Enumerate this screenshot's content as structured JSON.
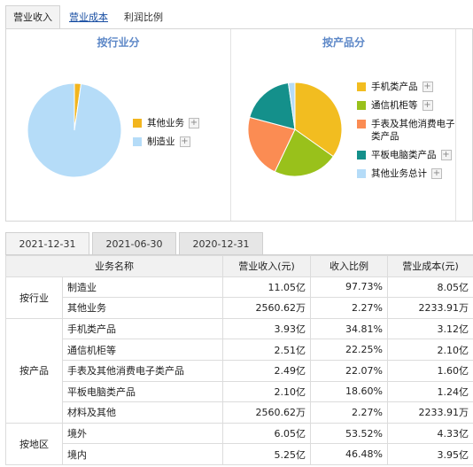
{
  "top_tabs": [
    {
      "label": "营业收入",
      "active": true
    },
    {
      "label": "营业成本",
      "active": false
    },
    {
      "label": "利润比例",
      "active": false
    }
  ],
  "industry_chart": {
    "title": "按行业分",
    "legend": [
      {
        "label": "其他业务",
        "color": "#f2b51e"
      },
      {
        "label": "制造业",
        "color": "#b5dcf8"
      }
    ]
  },
  "product_chart": {
    "title": "按产品分",
    "legend": [
      {
        "label": "手机类产品",
        "color": "#f2bd20"
      },
      {
        "label": "通信机柜等",
        "color": "#99c11b"
      },
      {
        "label": "手表及其他消费电子类产品",
        "label_line1": "手表及其他消费电子",
        "label_line2": "类产品",
        "color": "#fb8c53"
      },
      {
        "label": "平板电脑类产品",
        "color": "#14908b"
      },
      {
        "label": "其他业务总计",
        "color": "#b5dcf8"
      }
    ]
  },
  "chart_data": [
    {
      "type": "pie",
      "title": "按行业分",
      "categories": [
        "制造业",
        "其他业务"
      ],
      "values": [
        97.73,
        2.27
      ],
      "colors": [
        "#b5dcf8",
        "#f2b51e"
      ]
    },
    {
      "type": "pie",
      "title": "按产品分",
      "categories": [
        "手机类产品",
        "通信机柜等",
        "手表及其他消费电子类产品",
        "平板电脑类产品",
        "其他业务总计"
      ],
      "values": [
        34.81,
        22.25,
        22.07,
        18.6,
        2.27
      ],
      "colors": [
        "#f2bd20",
        "#99c11b",
        "#fb8c53",
        "#14908b",
        "#b5dcf8"
      ]
    }
  ],
  "date_tabs": [
    {
      "label": "2021-12-31",
      "active": true
    },
    {
      "label": "2021-06-30",
      "active": false
    },
    {
      "label": "2020-12-31",
      "active": false
    }
  ],
  "table": {
    "headers": {
      "name": "业务名称",
      "revenue": "营业收入(元)",
      "ratio": "收入比例",
      "cost": "营业成本(元)"
    },
    "groups": [
      {
        "label": "按行业",
        "rows": [
          {
            "name": "制造业",
            "revenue": "11.05亿",
            "ratio": "97.73%",
            "cost": "8.05亿"
          },
          {
            "name": "其他业务",
            "revenue": "2560.62万",
            "ratio": "2.27%",
            "cost": "2233.91万"
          }
        ]
      },
      {
        "label": "按产品",
        "rows": [
          {
            "name": "手机类产品",
            "revenue": "3.93亿",
            "ratio": "34.81%",
            "cost": "3.12亿"
          },
          {
            "name": "通信机柜等",
            "revenue": "2.51亿",
            "ratio": "22.25%",
            "cost": "2.10亿"
          },
          {
            "name": "手表及其他消费电子类产品",
            "revenue": "2.49亿",
            "ratio": "22.07%",
            "cost": "1.60亿"
          },
          {
            "name": "平板电脑类产品",
            "revenue": "2.10亿",
            "ratio": "18.60%",
            "cost": "1.24亿"
          },
          {
            "name": "材料及其他",
            "revenue": "2560.62万",
            "ratio": "2.27%",
            "cost": "2233.91万"
          }
        ]
      },
      {
        "label": "按地区",
        "rows": [
          {
            "name": "境外",
            "revenue": "6.05亿",
            "ratio": "53.52%",
            "cost": "4.33亿"
          },
          {
            "name": "境内",
            "revenue": "5.25亿",
            "ratio": "46.48%",
            "cost": "3.95亿"
          }
        ]
      }
    ]
  }
}
